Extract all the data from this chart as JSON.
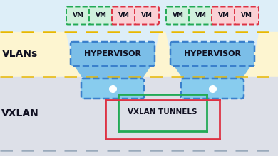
{
  "bg_top": "#ddeef8",
  "bg_vlans": "#fdf5d0",
  "bg_vxlan": "#dde0e8",
  "hypervisor_fill": "#7bbee8",
  "hypervisor_border": "#3a80cc",
  "vm_green_fill": "#d0f0dd",
  "vm_green_border": "#22aa55",
  "vm_red_fill": "#fad0d5",
  "vm_red_border": "#dd3344",
  "switch_fill": "#88ccee",
  "switch_border": "#3a80cc",
  "vlan_dash_color": "#e8b800",
  "vxlan_dash_color": "#9aaabb",
  "tunnel_green": "#22aa55",
  "tunnel_red": "#dd3344",
  "label_color": "#111122",
  "title_vlans": "VLANs",
  "title_vxlan": "VXLAN",
  "tunnel_label": "VXLAN TUNNELS",
  "fig_w": 3.9,
  "fig_h": 2.2,
  "dpi": 100
}
